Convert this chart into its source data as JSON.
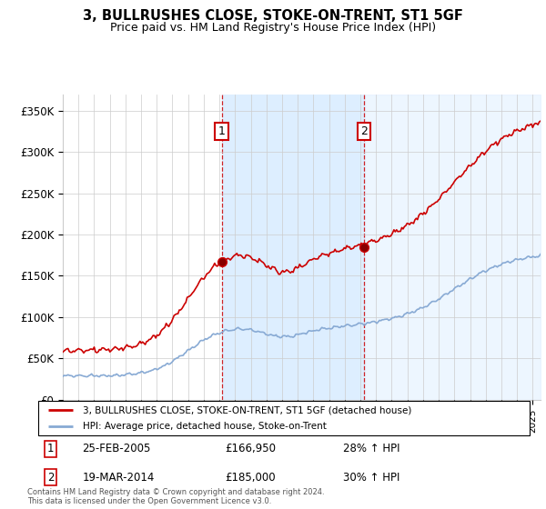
{
  "title": "3, BULLRUSHES CLOSE, STOKE-ON-TRENT, ST1 5GF",
  "subtitle": "Price paid vs. HM Land Registry's House Price Index (HPI)",
  "ylim": [
    0,
    370000
  ],
  "xlim_start": 1995,
  "xlim_end": 2025.5,
  "sale1_date": 2005.14,
  "sale1_price": 166950,
  "sale2_date": 2014.22,
  "sale2_price": 185000,
  "sale1_display": "25-FEB-2005",
  "sale1_amount": "£166,950",
  "sale1_hpi": "28% ↑ HPI",
  "sale2_display": "19-MAR-2014",
  "sale2_amount": "£185,000",
  "sale2_hpi": "30% ↑ HPI",
  "legend_line1": "3, BULLRUSHES CLOSE, STOKE-ON-TRENT, ST1 5GF (detached house)",
  "legend_line2": "HPI: Average price, detached house, Stoke-on-Trent",
  "footnote1": "Contains HM Land Registry data © Crown copyright and database right 2024.",
  "footnote2": "This data is licensed under the Open Government Licence v3.0.",
  "red_color": "#cc0000",
  "blue_color": "#88aad4",
  "shade_color": "#ddeeff",
  "grid_color": "#cccccc"
}
